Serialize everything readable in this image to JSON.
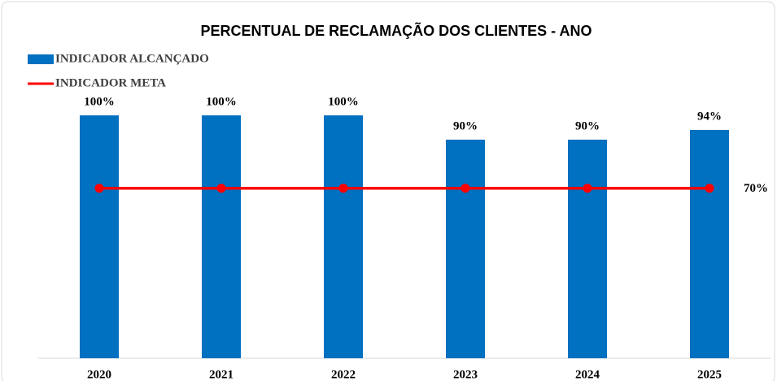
{
  "chart_data": {
    "type": "bar",
    "title": "PERCENTUAL DE RECLAMAÇÃO DOS CLIENTES - ANO",
    "categories": [
      "2020",
      "2021",
      "2022",
      "2023",
      "2024",
      "2025"
    ],
    "ylim": [
      0,
      100
    ],
    "legend": "top-left",
    "series": [
      {
        "name": "INDICADOR ALCANÇADO",
        "type": "bar",
        "color": "#0070c0",
        "values": [
          100,
          100,
          100,
          90,
          90,
          94
        ],
        "value_labels": [
          "100%",
          "100%",
          "100%",
          "90%",
          "90%",
          "94%"
        ]
      },
      {
        "name": "INDICADOR META",
        "type": "line",
        "color": "#ff0000",
        "values": [
          70,
          70,
          70,
          70,
          70,
          70
        ],
        "value_labels": [
          null,
          null,
          null,
          null,
          null,
          "70%"
        ]
      }
    ]
  }
}
